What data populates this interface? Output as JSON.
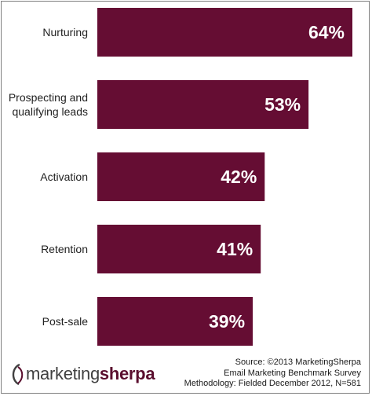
{
  "chart_data": {
    "type": "bar",
    "orientation": "horizontal",
    "categories": [
      [
        "Nurturing"
      ],
      [
        "Prospecting and",
        "qualifying leads"
      ],
      [
        "Activation"
      ],
      [
        "Retention"
      ],
      [
        "Post-sale"
      ]
    ],
    "values": [
      64,
      53,
      42,
      41,
      39
    ],
    "value_labels": [
      "64%",
      "53%",
      "42%",
      "41%",
      "39%"
    ],
    "bar_color": "#650d33",
    "xlim": [
      0,
      64
    ],
    "grid": false,
    "legend": "none"
  },
  "branding": {
    "logo_word_1": "marketing",
    "logo_word_2": "sherpa"
  },
  "source": {
    "line1": "Source: ©2013 MarketingSherpa",
    "line2": "Email Marketing Benchmark Survey",
    "line3": "Methodology: Fielded December 2012, N=581"
  }
}
